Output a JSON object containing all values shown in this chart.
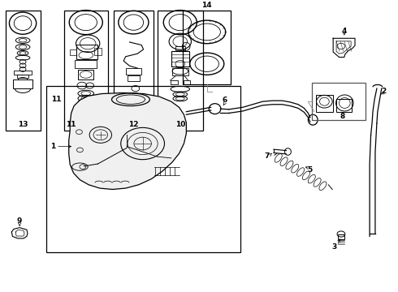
{
  "background_color": "#ffffff",
  "line_color": "#000000",
  "fig_width": 4.9,
  "fig_height": 3.6,
  "dpi": 100,
  "boxes": {
    "13": [
      0.012,
      0.555,
      0.088,
      0.415
    ],
    "11_main": [
      0.115,
      0.135,
      0.49,
      0.575
    ],
    "11_sub": [
      0.16,
      0.555,
      0.11,
      0.415
    ],
    "12": [
      0.285,
      0.555,
      0.1,
      0.415
    ],
    "10": [
      0.395,
      0.555,
      0.115,
      0.415
    ],
    "14": [
      0.46,
      0.715,
      0.12,
      0.255
    ],
    "8": [
      0.785,
      0.59,
      0.135,
      0.13
    ]
  }
}
